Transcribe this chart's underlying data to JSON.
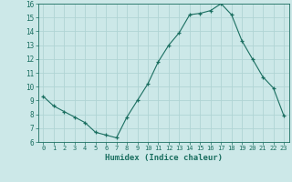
{
  "x": [
    0,
    1,
    2,
    3,
    4,
    5,
    6,
    7,
    8,
    9,
    10,
    11,
    12,
    13,
    14,
    15,
    16,
    17,
    18,
    19,
    20,
    21,
    22,
    23
  ],
  "y": [
    9.3,
    8.6,
    8.2,
    7.8,
    7.4,
    6.7,
    6.5,
    6.3,
    7.8,
    9.0,
    10.2,
    11.8,
    13.0,
    13.9,
    15.2,
    15.3,
    15.5,
    16.0,
    15.2,
    13.3,
    12.0,
    10.7,
    9.9,
    7.9
  ],
  "bg_color": "#cce8e8",
  "grid_color": "#b0d4d4",
  "line_color": "#1a6e60",
  "marker_color": "#1a6e60",
  "xlabel": "Humidex (Indice chaleur)",
  "ylim": [
    6,
    16
  ],
  "yticks": [
    6,
    7,
    8,
    9,
    10,
    11,
    12,
    13,
    14,
    15,
    16
  ],
  "xticks": [
    0,
    1,
    2,
    3,
    4,
    5,
    6,
    7,
    8,
    9,
    10,
    11,
    12,
    13,
    14,
    15,
    16,
    17,
    18,
    19,
    20,
    21,
    22,
    23
  ],
  "xlim": [
    -0.5,
    23.5
  ]
}
